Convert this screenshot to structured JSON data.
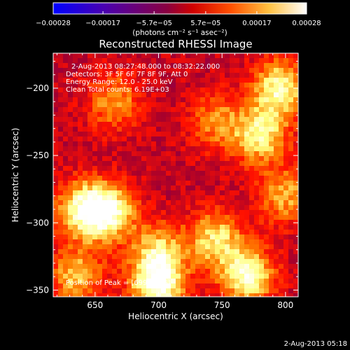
{
  "chart_data": {
    "type": "heatmap",
    "title": "Reconstructed RHESSI Image",
    "xlabel": "Heliocentric X (arcsec)",
    "ylabel": "Heliocentric Y (arcsec)",
    "xlim": [
      617,
      810
    ],
    "ylim": [
      -355,
      -174
    ],
    "xticks": [
      650,
      700,
      750,
      800
    ],
    "yticks": [
      -200,
      -250,
      -300,
      -350
    ],
    "colorbar": {
      "min": -0.00028,
      "max": 0.00028,
      "tick_values": [
        -0.00028,
        -0.00017,
        -5.7e-05,
        5.7e-05,
        0.00017,
        0.00028
      ],
      "tick_labels": [
        "-0.00028",
        "-0.00017",
        "-5.7e-05",
        "5.7e-05",
        "0.00017",
        "0.00028"
      ],
      "unit_label": "(photons cm⁻² s⁻¹ asec⁻²)",
      "colors": [
        "#0000ff",
        "#6a00c0",
        "#a00030",
        "#ff1000",
        "#ff8000",
        "#ffff80",
        "#ffffff"
      ]
    },
    "annotations": [
      "2-Aug-2013 08:27:48.000 to 08:32:22.000",
      "Detectors: 3F 5F 6F 7F 8F 9F, Att 0",
      "Energy Range: 12.0 - 25.0 keV",
      "Clean    Total counts: 6.19E+03"
    ],
    "peak_label": "Position of Peak = [699, -346]",
    "peak_position": [
      699,
      -346
    ],
    "emission_sources": [
      {
        "x": 795,
        "y": -200,
        "value": 0.00022
      },
      {
        "x": 780,
        "y": -235,
        "value": 0.0002
      },
      {
        "x": 665,
        "y": -210,
        "value": 0.00012
      },
      {
        "x": 745,
        "y": -225,
        "value": 0.0001
      },
      {
        "x": 660,
        "y": -292,
        "value": 0.00024
      },
      {
        "x": 640,
        "y": -290,
        "value": 0.00019
      },
      {
        "x": 700,
        "y": -320,
        "value": 0.00014
      },
      {
        "x": 745,
        "y": -312,
        "value": 0.00018
      },
      {
        "x": 770,
        "y": -340,
        "value": 0.00024
      },
      {
        "x": 699,
        "y": -346,
        "value": 0.00028
      },
      {
        "x": 635,
        "y": -340,
        "value": 0.00015
      },
      {
        "x": 800,
        "y": -280,
        "value": 0.00013
      }
    ]
  },
  "footer": {
    "timestamp": "2-Aug-2013 05:18"
  }
}
